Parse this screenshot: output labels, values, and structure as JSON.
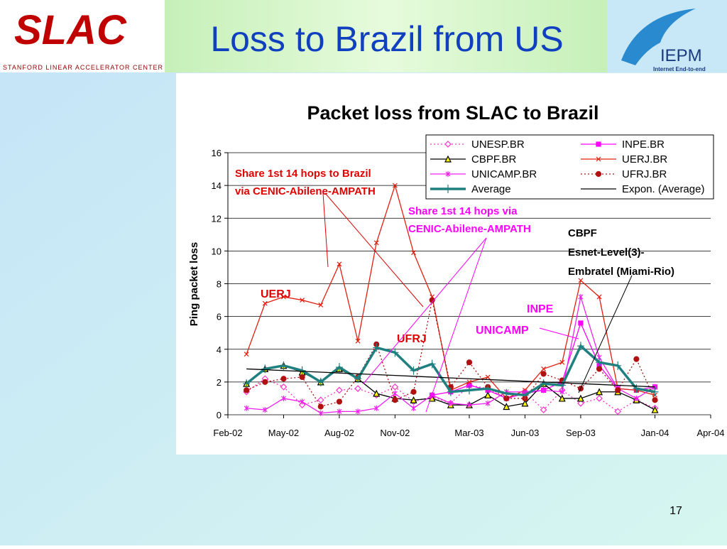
{
  "slide": {
    "title": "Loss to Brazil from US",
    "page_number": "17",
    "logo_left": {
      "name": "SLAC",
      "caption": "Stanford Linear Accelerator Center"
    },
    "logo_right": {
      "name": "IEPM",
      "caption": "Internet End-to-end"
    }
  },
  "chart_data": {
    "type": "line",
    "title": "Packet loss from SLAC to Brazil",
    "y_label": "Ping packet loss",
    "x": [
      "2002-03",
      "2002-04",
      "2002-05",
      "2002-06",
      "2002-07",
      "2002-08",
      "2002-09",
      "2002-10",
      "2002-11",
      "2002-12",
      "2003-01",
      "2003-02",
      "2003-03",
      "2003-04",
      "2003-05",
      "2003-06",
      "2003-07",
      "2003-08",
      "2003-09",
      "2003-10",
      "2003-11",
      "2003-12",
      "2004-01"
    ],
    "xlim": [
      "2002-02",
      "2004-04"
    ],
    "xticks": [
      {
        "value": "2002-02",
        "label": "Feb-02"
      },
      {
        "value": "2002-05",
        "label": "May-02"
      },
      {
        "value": "2002-08",
        "label": "Aug-02"
      },
      {
        "value": "2002-11",
        "label": "Nov-02"
      },
      {
        "value": "2003-03",
        "label": "Mar-03"
      },
      {
        "value": "2003-06",
        "label": "Jun-03"
      },
      {
        "value": "2003-09",
        "label": "Sep-03"
      },
      {
        "value": "2004-01",
        "label": "Jan-04"
      },
      {
        "value": "2004-04",
        "label": "Apr-04"
      }
    ],
    "ylim": [
      0,
      16
    ],
    "yticks": [
      0,
      2,
      4,
      6,
      8,
      10,
      12,
      14,
      16
    ],
    "grid": true,
    "legend": "upper right",
    "series": [
      {
        "name": "UNESP.BR",
        "color": "#ff33cc",
        "marker": "diamond",
        "dash": true,
        "values": [
          1.4,
          2.2,
          1.7,
          0.6,
          0.9,
          1.5,
          1.6,
          1.2,
          1.7,
          0.8,
          1.1,
          0.7,
          1.8,
          1.6,
          1.0,
          1.4,
          0.3,
          1.5,
          0.7,
          1.0,
          0.2,
          0.9,
          0.4
        ]
      },
      {
        "name": "INPE.BR",
        "color": "#ff00ff",
        "marker": "square",
        "dash": false,
        "values": [
          null,
          null,
          null,
          null,
          null,
          null,
          null,
          null,
          null,
          null,
          1.2,
          1.4,
          1.8,
          1.5,
          1.0,
          1.3,
          1.5,
          2.0,
          5.6,
          3.0,
          1.6,
          1.5,
          1.7
        ]
      },
      {
        "name": "CBPF.BR",
        "color": "#000000",
        "marker": "triangle",
        "dash": false,
        "values": [
          1.9,
          2.8,
          3.0,
          2.6,
          2.0,
          2.8,
          2.2,
          1.3,
          1.0,
          0.9,
          1.0,
          0.6,
          0.6,
          1.2,
          0.5,
          0.7,
          1.9,
          1.0,
          1.0,
          1.4,
          1.4,
          0.9,
          0.3
        ]
      },
      {
        "name": "UERJ.BR",
        "color": "#e02010",
        "marker": "x",
        "dash": false,
        "values": [
          3.7,
          6.8,
          7.2,
          7.0,
          6.7,
          9.2,
          4.5,
          10.5,
          14.0,
          9.9,
          7.2,
          1.5,
          2.0,
          2.3,
          1.0,
          1.5,
          2.8,
          3.2,
          8.2,
          7.2,
          1.6,
          1.5,
          1.2
        ]
      },
      {
        "name": "UNICAMP.BR",
        "color": "#ee22ee",
        "marker": "star",
        "dash": false,
        "values": [
          0.4,
          0.3,
          1.0,
          0.8,
          0.1,
          0.2,
          0.2,
          0.4,
          1.3,
          0.4,
          1.2,
          0.7,
          0.6,
          0.7,
          1.4,
          1.4,
          1.5,
          1.4,
          7.2,
          3.5,
          1.6,
          1.0,
          1.7
        ]
      },
      {
        "name": "UFRJ.BR",
        "color": "#b01010",
        "marker": "circle",
        "dash": true,
        "values": [
          1.5,
          2.0,
          2.2,
          2.3,
          0.5,
          0.8,
          2.3,
          4.3,
          0.9,
          1.4,
          7.0,
          1.7,
          3.2,
          1.7,
          1.0,
          1.0,
          2.5,
          2.1,
          1.6,
          2.8,
          1.5,
          3.4,
          0.9
        ]
      },
      {
        "name": "Average",
        "color": "#208080",
        "marker": "plus",
        "dash": false,
        "thick": true,
        "values": [
          1.9,
          2.8,
          3.0,
          2.7,
          2.0,
          2.9,
          2.2,
          4.1,
          3.8,
          2.7,
          3.1,
          1.4,
          1.5,
          1.6,
          1.3,
          1.2,
          1.9,
          1.8,
          4.2,
          3.2,
          3.0,
          1.6,
          1.4
        ]
      },
      {
        "name": "Expon. (Average)",
        "color": "#000000",
        "marker": "none",
        "dash": false,
        "values": [
          2.8,
          2.75,
          2.7,
          2.65,
          2.6,
          2.55,
          2.5,
          2.45,
          2.4,
          2.35,
          2.3,
          2.25,
          2.2,
          2.15,
          2.1,
          2.05,
          2.0,
          1.95,
          1.9,
          1.85,
          1.8,
          1.75,
          1.7
        ]
      }
    ],
    "annotations": [
      {
        "lines": [
          "Share 1st 14 hops to Brazil",
          "via CENIC-Abilene-AMPATH"
        ],
        "color": "#e00000"
      },
      {
        "lines": [
          "Share 1st 14 hops via",
          "CENIC-Abilene-AMPATH"
        ],
        "color": "#ff00ff"
      },
      {
        "lines": [
          "CBPF",
          "Esnet-Level(3)-",
          "Embratel (Miami-Rio)"
        ],
        "color": "#000000"
      },
      {
        "lines": [
          "UERJ"
        ],
        "color": "#e00000"
      },
      {
        "lines": [
          "INPE"
        ],
        "color": "#ff00ff"
      },
      {
        "lines": [
          "UFRJ"
        ],
        "color": "#e00000"
      },
      {
        "lines": [
          "UNICAMP"
        ],
        "color": "#ff00ff"
      }
    ]
  }
}
